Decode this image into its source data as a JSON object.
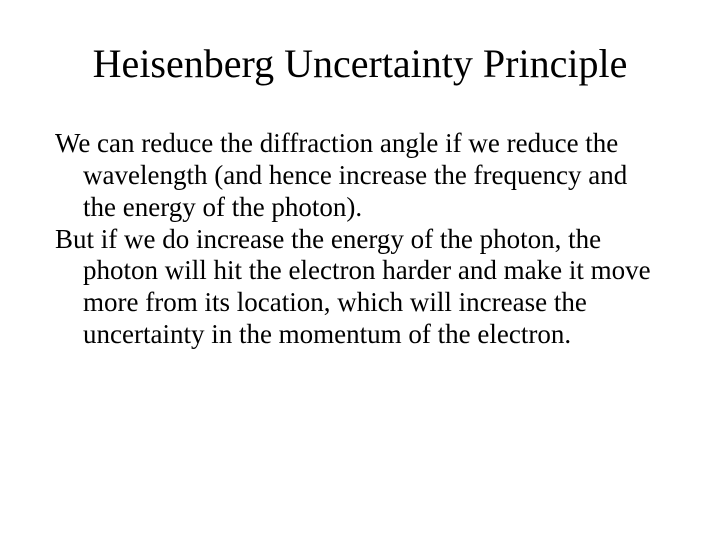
{
  "slide": {
    "title": "Heisenberg Uncertainty Principle",
    "paragraphs": [
      "We can reduce the diffraction angle if we reduce the wavelength (and hence increase the frequency and the energy of the photon).",
      "But if we do increase the energy of the photon, the photon will hit the electron harder and make it move more from its location, which will increase the uncertainty in the momentum of the electron."
    ],
    "background_color": "#ffffff",
    "text_color": "#000000",
    "title_fontsize": 40,
    "body_fontsize": 27,
    "font_family": "Times New Roman"
  }
}
